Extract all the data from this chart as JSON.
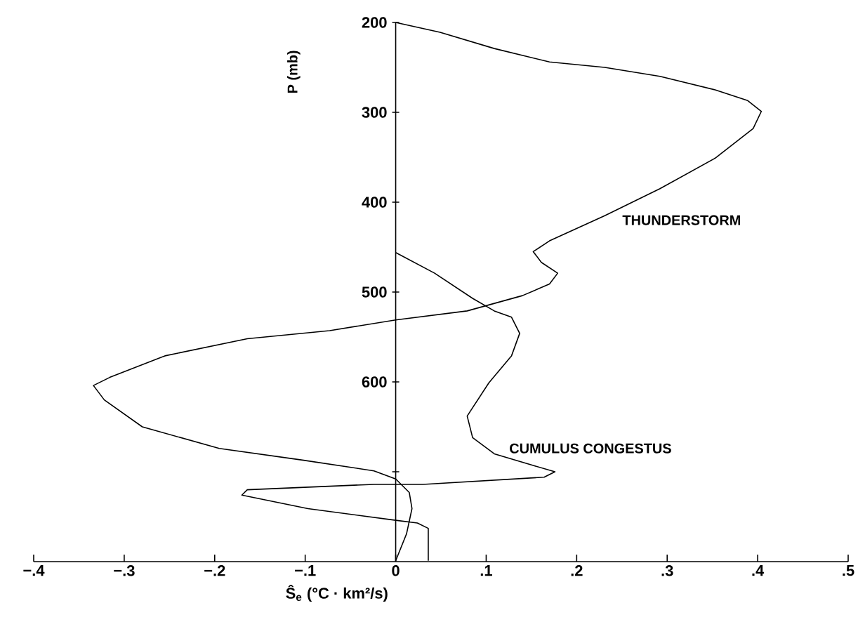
{
  "chart_data": {
    "type": "line",
    "xlabel": "Ŝ$_{e}$ (°C · km²/s)",
    "ylabel": "P (mb)",
    "xlim": [
      -0.4,
      0.5
    ],
    "ylim": [
      800,
      200
    ],
    "xticks": [
      {
        "value": -0.4,
        "label": "−.4"
      },
      {
        "value": -0.3,
        "label": "−.3"
      },
      {
        "value": -0.2,
        "label": "−.2"
      },
      {
        "value": -0.1,
        "label": "−.1"
      },
      0,
      {
        "value": 0.1,
        "label": ".1"
      },
      {
        "value": 0.2,
        "label": ".2"
      },
      {
        "value": 0.3,
        "label": ".3"
      },
      {
        "value": 0.4,
        "label": ".4"
      },
      {
        "value": 0.5,
        "label": ".5"
      }
    ],
    "yticks": [
      200,
      300,
      400,
      500,
      600,
      {
        "value": 700,
        "label": null
      }
    ],
    "grid": false,
    "legend": false,
    "marker": "none",
    "line_style": "solid",
    "series": [
      {
        "name": "THUNDERSTORM",
        "color": "#000000",
        "x": [
          0,
          0.049,
          0.109,
          0.17,
          0.231,
          0.292,
          0.353,
          0.389,
          0.404,
          0.395,
          0.353,
          0.292,
          0.231,
          0.17,
          0.152,
          0.161,
          0.179,
          0.17,
          0.14,
          0.079,
          0,
          -0.073,
          -0.164,
          -0.255,
          -0.316,
          -0.334,
          -0.322,
          -0.28,
          -0.195,
          -0.103,
          -0.024,
          0,
          0.015,
          0.018,
          0.012,
          0
        ],
        "values": [
          200,
          211,
          229,
          244,
          250,
          260,
          275,
          287,
          299,
          318,
          351,
          385,
          415,
          443,
          455,
          467,
          479,
          491,
          504,
          521,
          531,
          543,
          552,
          571,
          595,
          604,
          620,
          650,
          674,
          687,
          699,
          708,
          723,
          741,
          769,
          799
        ]
      },
      {
        "name": "CUMULUS CONGESTUS",
        "color": "#000000",
        "x": [
          0,
          0.043,
          0.085,
          0.109,
          0.128,
          0.137,
          0.128,
          0.103,
          0.079,
          0.085,
          0.109,
          0.152,
          0.176,
          0.164,
          0.03,
          -0.024,
          -0.164,
          -0.17,
          -0.097,
          0,
          0.024,
          0.036,
          0.036
        ],
        "values": [
          456,
          479,
          507,
          521,
          528,
          546,
          571,
          601,
          638,
          662,
          680,
          693,
          700,
          706,
          714,
          714,
          720,
          726,
          741,
          754,
          757,
          763,
          799
        ]
      }
    ]
  }
}
